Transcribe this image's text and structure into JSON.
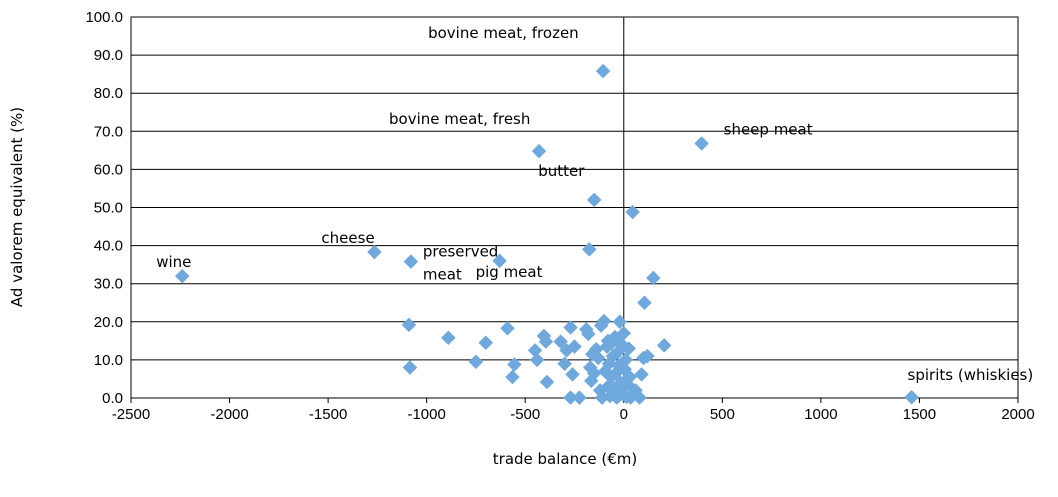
{
  "chart_data": {
    "type": "scatter",
    "title": "",
    "xlabel": "trade balance (€m)",
    "ylabel": "Ad valorem equivalent (%)",
    "xlim": [
      -2500,
      2000
    ],
    "ylim": [
      0,
      100
    ],
    "x_ticks": [
      "-2500",
      "-2000",
      "-1500",
      "-1000",
      "-500",
      "0",
      "500",
      "1000",
      "1500",
      "2000"
    ],
    "y_ticks": [
      "0.0",
      "10.0",
      "20.0",
      "30.0",
      "40.0",
      "50.0",
      "60.0",
      "70.0",
      "80.0",
      "90.0",
      "100.0"
    ],
    "grid": "horizontal",
    "marker_color": "#6FA8DC",
    "annotations": [
      {
        "lines": [
          "bovine meat, frozen"
        ],
        "x": -105,
        "y": 85.8
      },
      {
        "lines": [
          "bovine meat, fresh"
        ],
        "x": -430,
        "y": 64.8
      },
      {
        "lines": [
          "sheep meat"
        ],
        "x": 395,
        "y": 66.8
      },
      {
        "lines": [
          "butter"
        ],
        "x": -150,
        "y": 52.0
      },
      {
        "lines": [
          "cheese"
        ],
        "x": -1265,
        "y": 38.3
      },
      {
        "lines": [
          "preserved",
          "meat"
        ],
        "x": -1080,
        "y": 35.8
      },
      {
        "lines": [
          "pig meat"
        ],
        "x": -630,
        "y": 36.0
      },
      {
        "lines": [
          "wine"
        ],
        "x": -2240,
        "y": 32.0
      },
      {
        "lines": [
          "spirits (whiskies)"
        ],
        "x": 1460,
        "y": 0.2
      }
    ],
    "points": [
      [
        -2240,
        32.0
      ],
      [
        -1265,
        38.3
      ],
      [
        -1080,
        35.8
      ],
      [
        -630,
        36.0
      ],
      [
        -430,
        64.8
      ],
      [
        -105,
        85.8
      ],
      [
        -150,
        52.0
      ],
      [
        -175,
        39.0
      ],
      [
        395,
        66.8
      ],
      [
        45,
        48.8
      ],
      [
        150,
        31.5
      ],
      [
        105,
        25.0
      ],
      [
        205,
        13.8
      ],
      [
        1460,
        0.2
      ],
      [
        -1090,
        19.2
      ],
      [
        -1085,
        8.0
      ],
      [
        -890,
        15.8
      ],
      [
        -750,
        9.5
      ],
      [
        -700,
        14.5
      ],
      [
        -590,
        18.3
      ],
      [
        -565,
        5.5
      ],
      [
        -555,
        8.8
      ],
      [
        -450,
        12.5
      ],
      [
        -440,
        10.0
      ],
      [
        -405,
        16.3
      ],
      [
        -390,
        4.2
      ],
      [
        -395,
        14.8
      ],
      [
        -320,
        14.8
      ],
      [
        -300,
        9.0
      ],
      [
        -290,
        12.5
      ],
      [
        -270,
        18.5
      ],
      [
        -260,
        6.2
      ],
      [
        -250,
        13.5
      ],
      [
        -270,
        0.1
      ],
      [
        -225,
        0.1
      ],
      [
        -190,
        18.0
      ],
      [
        -180,
        16.8
      ],
      [
        -170,
        8.0
      ],
      [
        -165,
        4.5
      ],
      [
        -160,
        11.5
      ],
      [
        -150,
        6.5
      ],
      [
        -140,
        12.8
      ],
      [
        -130,
        10.5
      ],
      [
        -120,
        2.0
      ],
      [
        -115,
        19.0
      ],
      [
        -110,
        0.1
      ],
      [
        -100,
        20.2
      ],
      [
        -95,
        7.0
      ],
      [
        -85,
        13.5
      ],
      [
        -80,
        3.0
      ],
      [
        -75,
        9.0
      ],
      [
        -70,
        0.5
      ],
      [
        -65,
        5.5
      ],
      [
        -60,
        14.5
      ],
      [
        -55,
        11.0
      ],
      [
        -50,
        2.5
      ],
      [
        -45,
        16.0
      ],
      [
        -40,
        6.5
      ],
      [
        -35,
        0.1
      ],
      [
        -30,
        12.0
      ],
      [
        -25,
        8.5
      ],
      [
        -20,
        20.0
      ],
      [
        -15,
        4.0
      ],
      [
        -10,
        14.0
      ],
      [
        -5,
        1.0
      ],
      [
        0,
        17.0
      ],
      [
        5,
        7.5
      ],
      [
        10,
        10.0
      ],
      [
        15,
        0.3
      ],
      [
        20,
        3.5
      ],
      [
        25,
        13.0
      ],
      [
        30,
        5.5
      ],
      [
        35,
        0.1
      ],
      [
        60,
        2.0
      ],
      [
        80,
        0.1
      ],
      [
        90,
        6.2
      ],
      [
        100,
        10.5
      ],
      [
        120,
        11.0
      ],
      [
        -80,
        15.0
      ]
    ]
  }
}
